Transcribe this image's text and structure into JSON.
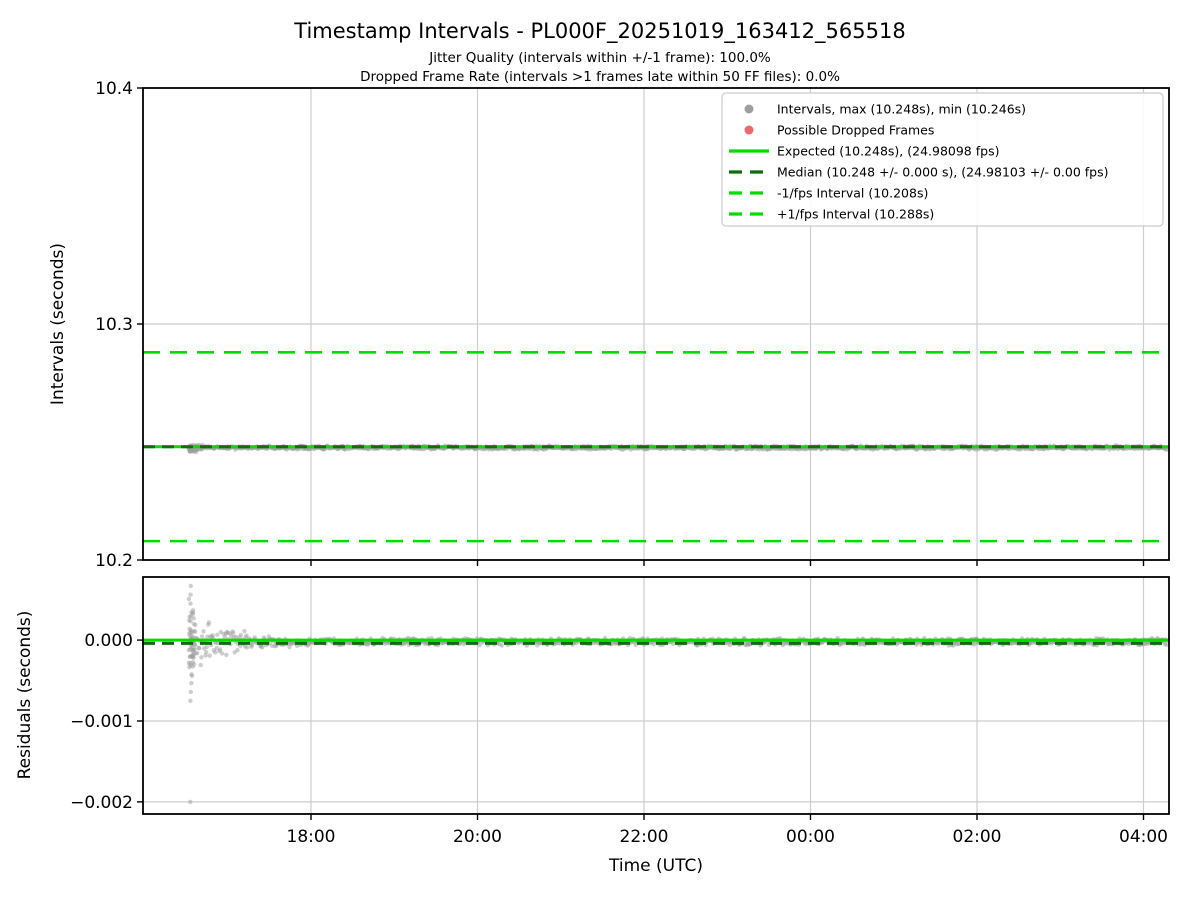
{
  "title": "Timestamp Intervals - PL000F_20251019_163412_565518",
  "subtitle1": "Jitter Quality (intervals within +/-1 frame): 100.0%",
  "subtitle2": "Dropped Frame Rate (intervals >1 frames late within 50 FF files): 0.0%",
  "colors": {
    "lime": "#00dc00",
    "darkgreen": "#0e6e0e",
    "gray": "#9e9e9e",
    "red": "#e86a6a",
    "grid": "#cdcdcd",
    "spine": "#000000",
    "legend_border": "#cccccc"
  },
  "chart_data": [
    {
      "type": "scatter",
      "name": "intervals",
      "title": "Timestamp Intervals - PL000F_20251019_163412_565518",
      "ylabel": "Intervals (seconds)",
      "ylim": [
        10.2,
        10.4
      ],
      "yticks": {
        "values": [
          10.4,
          10.3,
          10.2
        ],
        "labels": [
          "10.4",
          "10.3",
          "10.2"
        ]
      },
      "x": {
        "label": "Time (UTC)",
        "tick_labels": [
          "18:00",
          "20:00",
          "22:00",
          "00:00",
          "02:00",
          "04:00"
        ],
        "tick_minutes_after_1600": [
          120,
          240,
          360,
          480,
          600,
          720
        ],
        "data_start_minutes_after_1600": 32,
        "data_end_minutes_after_1600": 737
      },
      "grid": true,
      "legend_position": "upper right",
      "series": {
        "name": "Intervals",
        "marker": "gray-dot",
        "stats": {
          "max_s": 10.248,
          "min_s": 10.246
        },
        "band_center_s": 10.2476,
        "band_halfwidth_s": 0.0009,
        "startup_transient_halfwidth_s": 0.0017,
        "startup_decay_minutes": 20
      },
      "lines": [
        {
          "name": "expected",
          "value": 10.248,
          "style": "solid",
          "color_key": "lime",
          "fps": 24.98098
        },
        {
          "name": "median",
          "value": 10.248,
          "style": "dashed",
          "color_key": "darkgreen",
          "fps": 24.98103
        },
        {
          "name": "minus-1fps-interval",
          "value": 10.208,
          "style": "dashed",
          "color_key": "lime"
        },
        {
          "name": "plus-1fps-interval",
          "value": 10.288,
          "style": "dashed",
          "color_key": "lime"
        }
      ]
    },
    {
      "type": "scatter",
      "name": "residuals",
      "ylabel": "Residuals (seconds)",
      "xlabel": "Time (UTC)",
      "ylim": [
        -0.00215,
        0.00078
      ],
      "yticks": {
        "values": [
          0.0,
          -0.001,
          -0.002
        ],
        "labels": [
          "0.000",
          "−0.001",
          "−0.002"
        ]
      },
      "grid": true,
      "series": {
        "name": "Residuals",
        "marker": "gray-dot",
        "band_center_s": -2e-05,
        "band_halfwidth_s": 5e-05,
        "startup_transient_halfwidth_s": 0.00045,
        "startup_decay_minutes": 30,
        "startup_column": {
          "minutes_after_1600": 33,
          "from_s": -0.00075,
          "to_s": 0.00067
        },
        "outlier": {
          "minutes_after_1600": 33,
          "value_s": -0.002
        }
      },
      "lines": [
        {
          "name": "zero-residual",
          "value": 0.0,
          "style": "solid",
          "color_key": "lime"
        },
        {
          "name": "median-residual",
          "value": -4e-05,
          "style": "dashed",
          "color_key": "darkgreen"
        }
      ]
    }
  ],
  "legend": {
    "items": [
      {
        "sample": "marker",
        "color_key": "gray",
        "label": "Intervals, max (10.248s), min (10.246s)"
      },
      {
        "sample": "marker",
        "color_key": "red",
        "label": "Possible Dropped Frames"
      },
      {
        "sample": "line-solid",
        "color_key": "lime",
        "label": "Expected (10.248s), (24.98098 fps)"
      },
      {
        "sample": "line-dashed",
        "color_key": "darkgreen",
        "label": "Median (10.248 +/- 0.000 s), (24.98103 +/- 0.00 fps)"
      },
      {
        "sample": "line-dashed",
        "color_key": "lime",
        "label": "-1/fps Interval (10.208s)"
      },
      {
        "sample": "line-dashed",
        "color_key": "lime",
        "label": "+1/fps Interval (10.288s)"
      }
    ]
  }
}
